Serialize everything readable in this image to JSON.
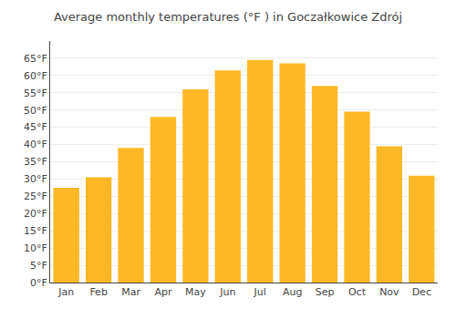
{
  "chart_data": {
    "type": "bar",
    "title": "Average monthly temperatures (°F ) in Goczałkowice Zdrój",
    "categories": [
      "Jan",
      "Feb",
      "Mar",
      "Apr",
      "May",
      "Jun",
      "Jul",
      "Aug",
      "Sep",
      "Oct",
      "Nov",
      "Dec"
    ],
    "values": [
      27.5,
      30.5,
      39.0,
      48.0,
      56.0,
      61.5,
      64.5,
      63.5,
      57.0,
      49.5,
      39.5,
      31.0
    ],
    "color": "#FDB827",
    "ylim": [
      0,
      70
    ],
    "yticks": [
      {
        "value": 0,
        "label": "0°F"
      },
      {
        "value": 5,
        "label": "5°F"
      },
      {
        "value": 10,
        "label": "10°F"
      },
      {
        "value": 15,
        "label": "15°F"
      },
      {
        "value": 20,
        "label": "20°F"
      },
      {
        "value": 25,
        "label": "25°F"
      },
      {
        "value": 30,
        "label": "30°F"
      },
      {
        "value": 35,
        "label": "35°F"
      },
      {
        "value": 40,
        "label": "40°F"
      },
      {
        "value": 45,
        "label": "45°F"
      },
      {
        "value": 50,
        "label": "50°F"
      },
      {
        "value": 55,
        "label": "55°F"
      },
      {
        "value": 60,
        "label": "60°F"
      },
      {
        "value": 65,
        "label": "65°F"
      }
    ],
    "grid": true
  }
}
